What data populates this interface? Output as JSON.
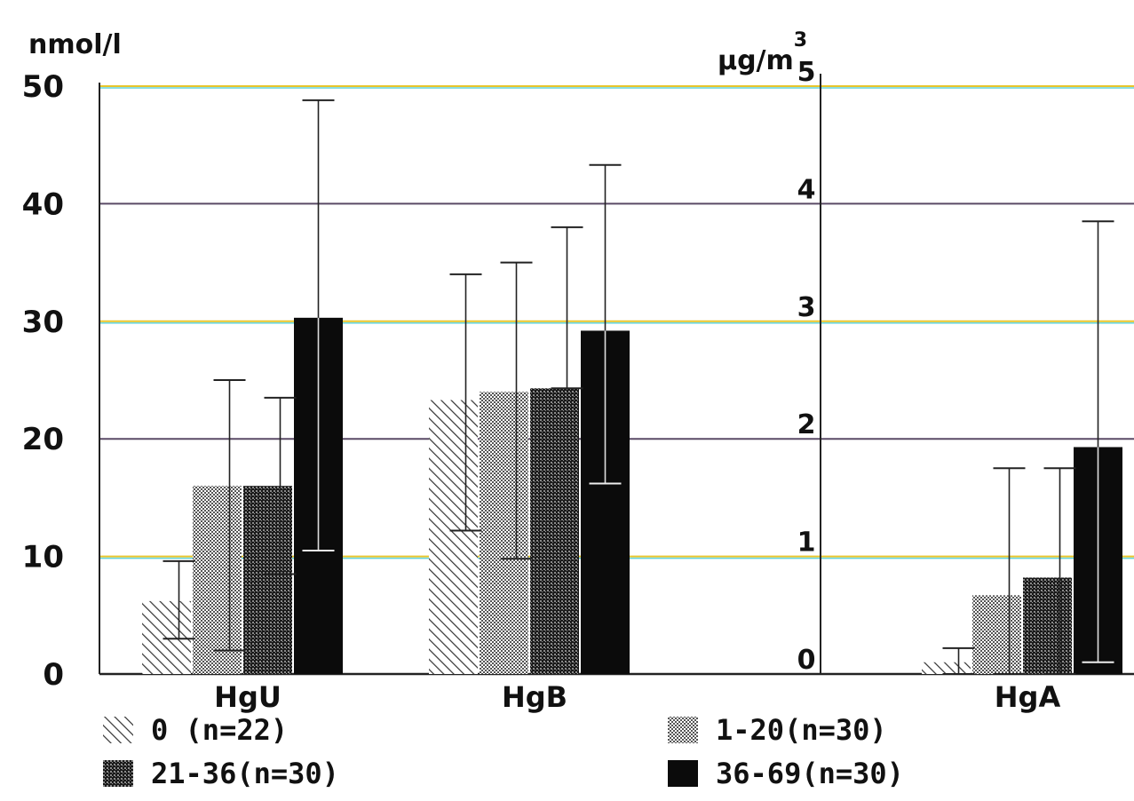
{
  "chart_data": {
    "type": "bar",
    "categories": [
      "HgU",
      "HgB",
      "HgA"
    ],
    "series": [
      {
        "name": "0 (n=22)",
        "values": [
          6.2,
          23.3,
          0.1
        ],
        "err_low": [
          3.0,
          12.2,
          0.0
        ],
        "err_high": [
          9.6,
          34.0,
          0.22
        ]
      },
      {
        "name": "1-20(n=30)",
        "values": [
          16.0,
          24.0,
          0.67
        ],
        "err_low": [
          2.0,
          9.8,
          0.0
        ],
        "err_high": [
          25.0,
          35.0,
          1.75
        ]
      },
      {
        "name": "21-36(n=30)",
        "values": [
          16.0,
          24.3,
          0.82
        ],
        "err_low": [
          8.5,
          24.3,
          0.0
        ],
        "err_high": [
          23.5,
          38.0,
          1.75
        ]
      },
      {
        "name": "36-69(n=30)",
        "values": [
          30.3,
          29.2,
          1.93
        ],
        "err_low": [
          10.5,
          16.2,
          0.1
        ],
        "err_high": [
          48.8,
          43.3,
          3.85
        ]
      }
    ],
    "ylabel_left": "nmol/l",
    "ylabel_right": "µg/m",
    "ylabel_right_sup": "3",
    "ylim_left": [
      0,
      50
    ],
    "ylim_right": [
      0,
      5
    ],
    "yticks_left": [
      "0",
      "10",
      "20",
      "30",
      "40",
      "50"
    ],
    "yticks_right": [
      "0",
      "1",
      "2",
      "3",
      "4",
      "5"
    ],
    "right_axis_categories": [
      "HgA"
    ],
    "grid": true,
    "legend_position": "bottom",
    "colors": {
      "gridline": "#5a4a66",
      "gridline_highlight": "#e8c52a",
      "gridline_cyan": "#63d3d9",
      "bar_dark": "#0b0b0b",
      "hatch": "#2a2a2a",
      "axis": "#222222"
    }
  }
}
